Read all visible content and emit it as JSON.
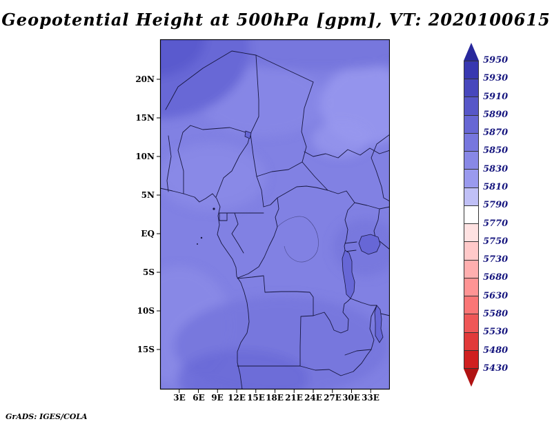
{
  "title": "Geopotential Height at 500hPa [gpm], VT: 2020100615",
  "credit": "GrADS: IGES/COLA",
  "chart_data": {
    "type": "heatmap",
    "title": "Geopotential Height at 500hPa [gpm], VT: 2020100615",
    "variable": "Geopotential Height",
    "level": "500hPa",
    "units": "gpm",
    "valid_time": "2020100615",
    "x_axis": {
      "ticks": [
        "3E",
        "6E",
        "9E",
        "12E",
        "15E",
        "18E",
        "21E",
        "24E",
        "27E",
        "30E",
        "33E"
      ],
      "range_deg_east": [
        0,
        36
      ]
    },
    "y_axis": {
      "ticks": [
        "20N",
        "15N",
        "10N",
        "5N",
        "EQ",
        "5S",
        "10S",
        "15S"
      ],
      "range_deg_north": [
        -20,
        25
      ]
    },
    "colorbar": {
      "labels": [
        "5950",
        "5930",
        "5910",
        "5890",
        "5870",
        "5850",
        "5830",
        "5810",
        "5790",
        "5770",
        "5750",
        "5730",
        "5680",
        "5630",
        "5580",
        "5530",
        "5480",
        "5430"
      ],
      "colors": [
        "#28289c",
        "#3838b0",
        "#4747bc",
        "#5757c8",
        "#6767d4",
        "#7777de",
        "#8888e6",
        "#9a9aee",
        "#c0c0f6",
        "#ffffff",
        "#ffe2e2",
        "#ffc9c9",
        "#ffafaf",
        "#ff9494",
        "#fa7676",
        "#ef5757",
        "#e13a3a",
        "#d02020",
        "#b01212"
      ],
      "orientation": "vertical",
      "position": "right"
    },
    "map_colors": {
      "base": "#8181e3",
      "mid": "#8b8be7",
      "light": "#9898ee",
      "middark": "#7575dc",
      "dark1": "#6767d6",
      "dark2": "#5a5ace",
      "border": "#16163e"
    },
    "field_description": "Shaded 500 hPa geopotential height over equatorial Africa (0E-36E, 20S-24N); values mostly in the 5830-5890 gpm range, with the highest shading (about 5890-5910 gpm) in the far northwest corner and slightly lighter values (about 5830-5850 gpm) over the east and central sectors.",
    "grid": false
  }
}
